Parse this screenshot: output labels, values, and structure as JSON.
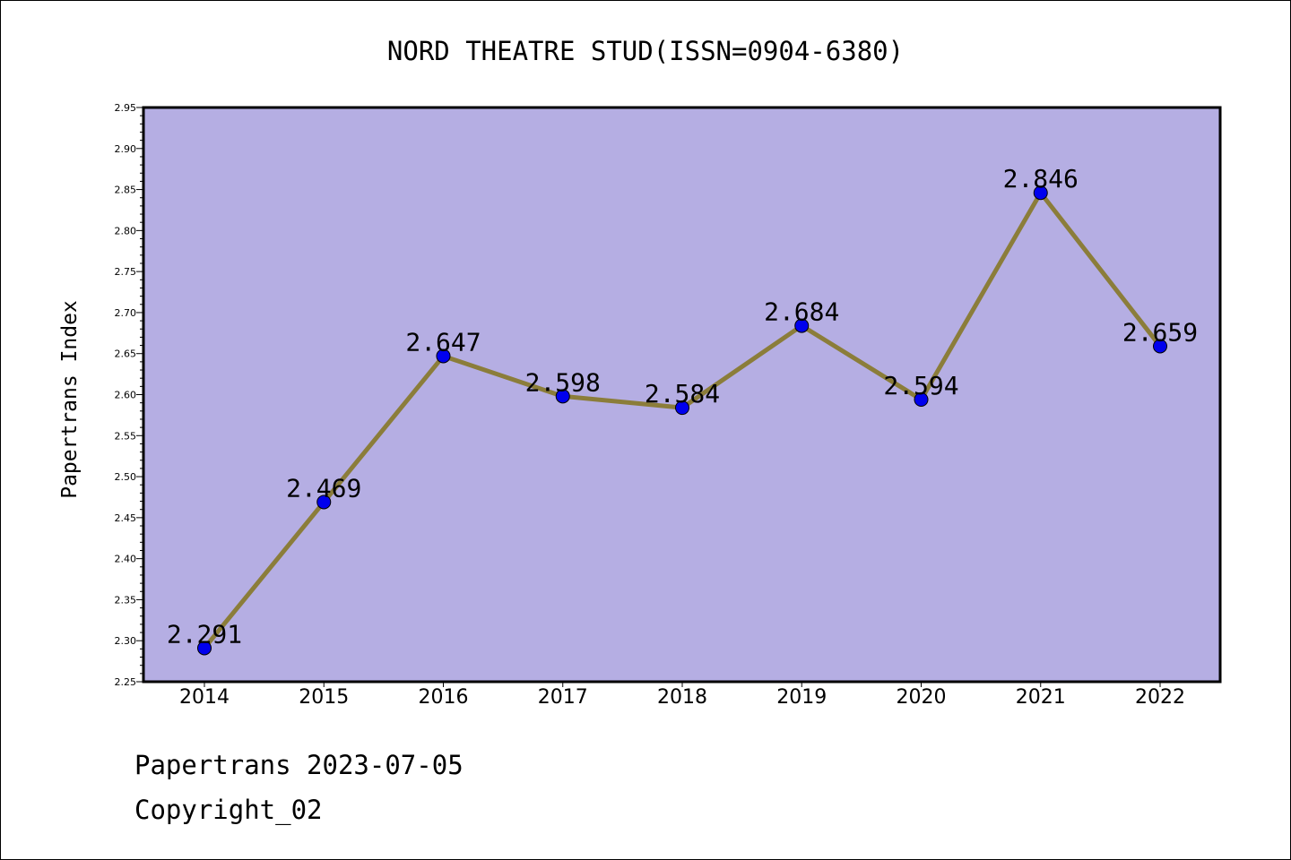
{
  "chart_data": {
    "type": "line",
    "title": "NORD THEATRE STUD(ISSN=0904-6380)",
    "ylabel": "Papertrans Index",
    "xlabel": "",
    "categories": [
      "2014",
      "2015",
      "2016",
      "2017",
      "2018",
      "2019",
      "2020",
      "2021",
      "2022"
    ],
    "series": [
      {
        "values": [
          2.291,
          2.469,
          2.647,
          2.598,
          2.584,
          2.684,
          2.594,
          2.846,
          2.659
        ],
        "labels": [
          "2.291",
          "2.469",
          "2.647",
          "2.598",
          "2.584",
          "2.684",
          "2.594",
          "2.846",
          "2.659"
        ],
        "line_color": "#8b7d3a",
        "marker_color": "#0000ee"
      }
    ],
    "ylim": [
      2.25,
      2.95
    ],
    "yticks": [
      "2.25",
      "2.30",
      "2.35",
      "2.40",
      "2.45",
      "2.50",
      "2.55",
      "2.60",
      "2.65",
      "2.70",
      "2.75",
      "2.80",
      "2.85",
      "2.90",
      "2.95"
    ],
    "grid": false,
    "plot_background": "#b5aee3"
  },
  "footer": {
    "line1": "Papertrans 2023-07-05",
    "line2": "Copyright_02"
  }
}
